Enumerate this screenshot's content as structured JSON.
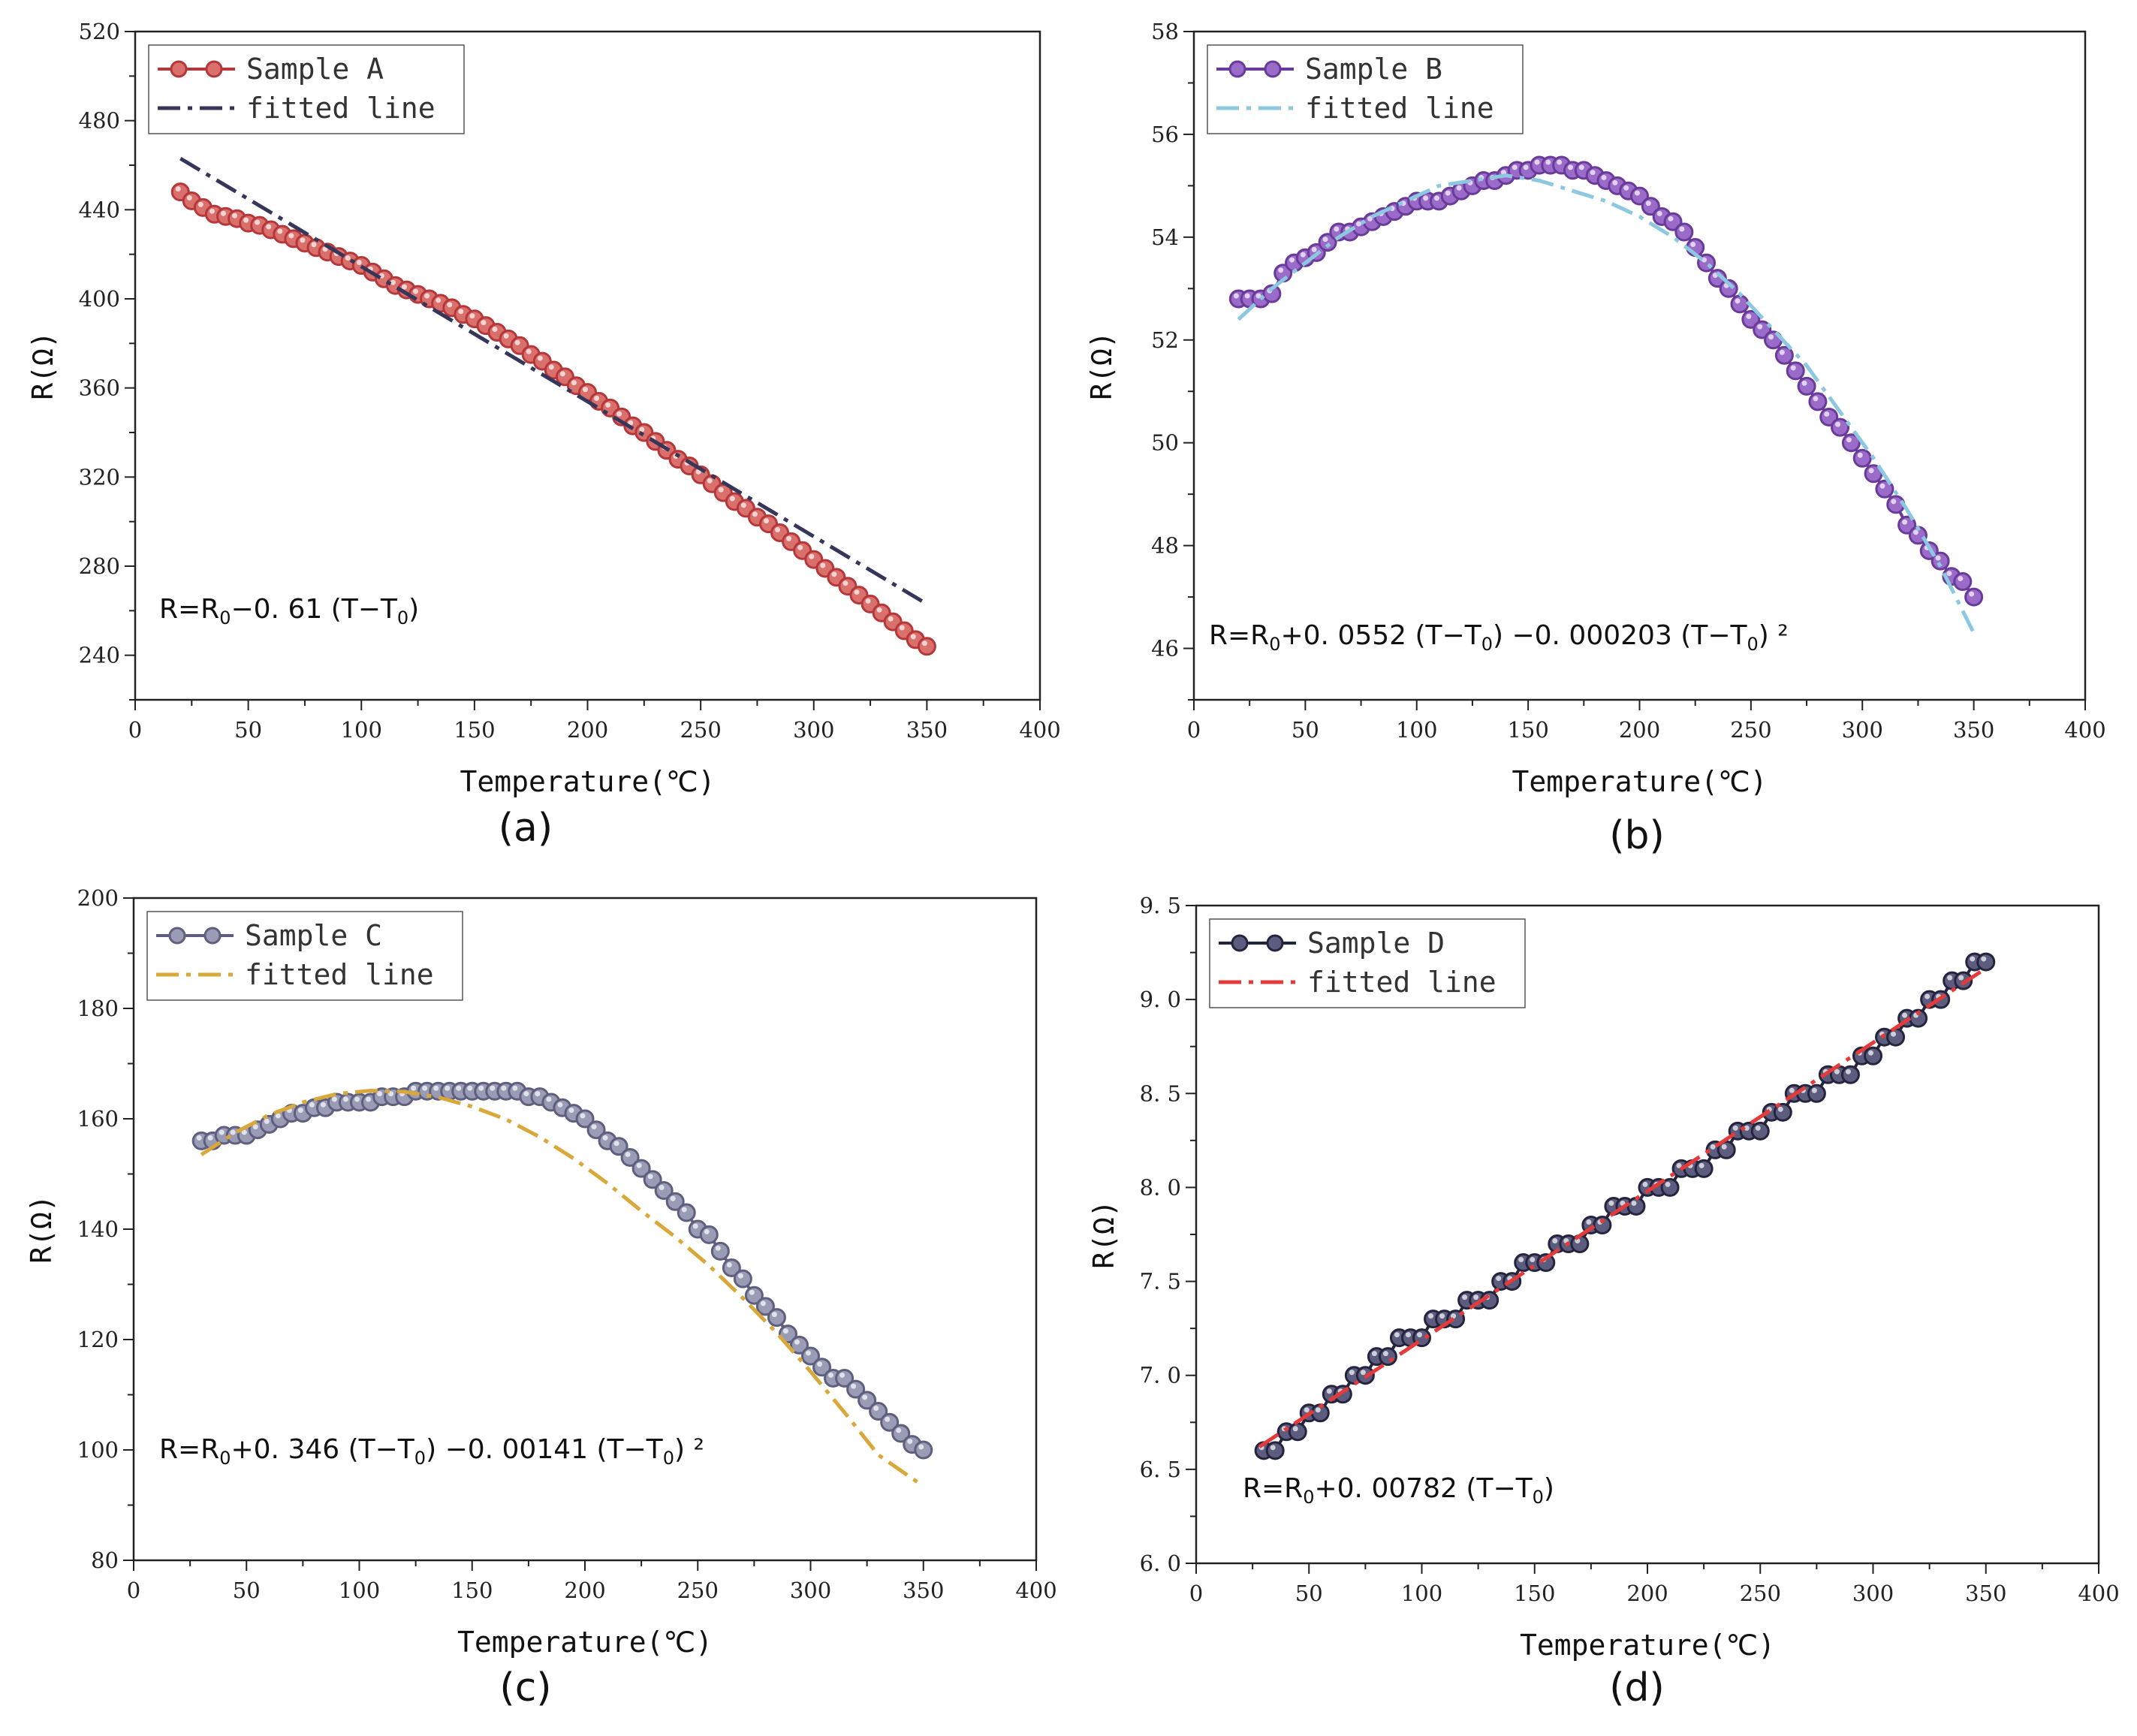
{
  "chart_data": [
    {
      "panel_label": "(a)",
      "type": "line",
      "xlabel": "Temperature(℃)",
      "ylabel": "R(Ω)",
      "xlim": [
        0,
        400
      ],
      "ylim": [
        220,
        520
      ],
      "xticks": [
        "0",
        "50",
        "100",
        "150",
        "200",
        "250",
        "300",
        "350",
        "400"
      ],
      "yticks": [
        "240",
        "280",
        "320",
        "360",
        "400",
        "440",
        "480",
        "520"
      ],
      "legend_position": "top-left",
      "formula": {
        "pre": "R=R",
        "s1": "0",
        "mid": "−0. 61 (T−T",
        "s2": "0",
        "post": ")"
      },
      "series": [
        {
          "name": "Sample A",
          "kind": "markers",
          "color": "#b5373a",
          "fill": "#d9706c",
          "x": [
            20,
            25,
            30,
            35,
            40,
            45,
            50,
            55,
            60,
            65,
            70,
            75,
            80,
            85,
            90,
            95,
            100,
            105,
            110,
            115,
            120,
            125,
            130,
            135,
            140,
            145,
            150,
            155,
            160,
            165,
            170,
            175,
            180,
            185,
            190,
            195,
            200,
            205,
            210,
            215,
            220,
            225,
            230,
            235,
            240,
            245,
            250,
            255,
            260,
            265,
            270,
            275,
            280,
            285,
            290,
            295,
            300,
            305,
            310,
            315,
            320,
            325,
            330,
            335,
            340,
            345,
            350
          ],
          "y": [
            448,
            444,
            441,
            438,
            437,
            436,
            434,
            433,
            431,
            429,
            427,
            425,
            423,
            421,
            419,
            417,
            415,
            412,
            409,
            406,
            404,
            402,
            400,
            398,
            396,
            393,
            391,
            388,
            385,
            382,
            379,
            375,
            372,
            368,
            365,
            361,
            358,
            354,
            351,
            347,
            343,
            340,
            336,
            332,
            328,
            325,
            321,
            317,
            313,
            309,
            306,
            302,
            299,
            295,
            291,
            287,
            283,
            279,
            275,
            271,
            267,
            263,
            259,
            255,
            251,
            247,
            244
          ]
        },
        {
          "name": "fitted line",
          "kind": "dashdot",
          "color": "#35365a",
          "x": [
            20,
            350
          ],
          "y": [
            463,
            263
          ]
        }
      ]
    },
    {
      "panel_label": "(b)",
      "type": "line",
      "xlabel": "Temperature(℃)",
      "ylabel": "R(Ω)",
      "xlim": [
        0,
        400
      ],
      "ylim": [
        45,
        58
      ],
      "xticks": [
        "0",
        "50",
        "100",
        "150",
        "200",
        "250",
        "300",
        "350",
        "400"
      ],
      "yticks": [
        "46",
        "48",
        "50",
        "52",
        "54",
        "56",
        "58"
      ],
      "legend_position": "top-left",
      "formula": {
        "pre": "R=R",
        "s1": "0",
        "mid": "+0. 0552 (T−T",
        "s2": "0",
        "mid2": ") −0. 000203 (T−T",
        "s3": "0",
        "post": ") ²"
      },
      "series": [
        {
          "name": "Sample B",
          "kind": "markers",
          "color": "#6a3a9a",
          "fill": "#9a6bc8",
          "x": [
            20,
            25,
            30,
            35,
            40,
            45,
            50,
            55,
            60,
            65,
            70,
            75,
            80,
            85,
            90,
            95,
            100,
            105,
            110,
            115,
            120,
            125,
            130,
            135,
            140,
            145,
            150,
            155,
            160,
            165,
            170,
            175,
            180,
            185,
            190,
            195,
            200,
            205,
            210,
            215,
            220,
            225,
            230,
            235,
            240,
            245,
            250,
            255,
            260,
            265,
            270,
            275,
            280,
            285,
            290,
            295,
            300,
            305,
            310,
            315,
            320,
            325,
            330,
            335,
            340,
            345,
            350
          ],
          "y": [
            52.8,
            52.8,
            52.8,
            52.9,
            53.3,
            53.5,
            53.6,
            53.7,
            53.9,
            54.1,
            54.1,
            54.2,
            54.3,
            54.4,
            54.5,
            54.6,
            54.7,
            54.7,
            54.7,
            54.8,
            54.9,
            55.0,
            55.1,
            55.1,
            55.2,
            55.3,
            55.3,
            55.4,
            55.4,
            55.4,
            55.3,
            55.3,
            55.2,
            55.1,
            55.0,
            54.9,
            54.8,
            54.6,
            54.4,
            54.3,
            54.1,
            53.8,
            53.5,
            53.2,
            53.0,
            52.7,
            52.4,
            52.2,
            52.0,
            51.7,
            51.4,
            51.1,
            50.8,
            50.5,
            50.3,
            50.0,
            49.7,
            49.4,
            49.1,
            48.8,
            48.4,
            48.2,
            47.9,
            47.7,
            47.4,
            47.3,
            47.0
          ]
        },
        {
          "name": "fitted line",
          "kind": "dashdot",
          "color": "#8cc8e0",
          "x": [
            20,
            35,
            50,
            65,
            80,
            95,
            110,
            125,
            140,
            155,
            170,
            185,
            200,
            215,
            230,
            245,
            260,
            275,
            290,
            305,
            320,
            335,
            350
          ],
          "y": [
            52.4,
            53.0,
            53.5,
            54.0,
            54.4,
            54.7,
            55.0,
            55.1,
            55.2,
            55.1,
            54.9,
            54.7,
            54.4,
            54.0,
            53.5,
            52.9,
            52.2,
            51.5,
            50.6,
            49.7,
            48.7,
            47.6,
            46.3
          ]
        }
      ]
    },
    {
      "panel_label": "(c)",
      "type": "line",
      "xlabel": "Temperature(℃)",
      "ylabel": "R(Ω)",
      "xlim": [
        0,
        400
      ],
      "ylim": [
        80,
        200
      ],
      "xticks": [
        "0",
        "50",
        "100",
        "150",
        "200",
        "250",
        "300",
        "350",
        "400"
      ],
      "yticks": [
        "80",
        "100",
        "120",
        "140",
        "160",
        "180",
        "200"
      ],
      "legend_position": "top-left",
      "formula": {
        "pre": "R=R",
        "s1": "0",
        "mid": "+0. 346 (T−T",
        "s2": "0",
        "mid2": ") −0. 00141 (T−T",
        "s3": "0",
        "post": ") ²"
      },
      "series": [
        {
          "name": "Sample C",
          "kind": "markers",
          "color": "#5e5f7e",
          "fill": "#9a9bb4",
          "x": [
            30,
            35,
            40,
            45,
            50,
            55,
            60,
            65,
            70,
            75,
            80,
            85,
            90,
            95,
            100,
            105,
            110,
            115,
            120,
            125,
            130,
            135,
            140,
            145,
            150,
            155,
            160,
            165,
            170,
            175,
            180,
            185,
            190,
            195,
            200,
            205,
            210,
            215,
            220,
            225,
            230,
            235,
            240,
            245,
            250,
            255,
            260,
            265,
            270,
            275,
            280,
            285,
            290,
            295,
            300,
            305,
            310,
            315,
            320,
            325,
            330,
            335,
            340,
            345,
            350
          ],
          "y": [
            156,
            156,
            157,
            157,
            157,
            158,
            159,
            160,
            161,
            161,
            162,
            162,
            163,
            163,
            163,
            163,
            164,
            164,
            164,
            165,
            165,
            165,
            165,
            165,
            165,
            165,
            165,
            165,
            165,
            164,
            164,
            163,
            162,
            161,
            160,
            158,
            156,
            155,
            153,
            151,
            149,
            147,
            145,
            143,
            140,
            139,
            136,
            133,
            131,
            128,
            126,
            124,
            121,
            119,
            117,
            115,
            113,
            113,
            111,
            109,
            107,
            105,
            103,
            101,
            100
          ]
        },
        {
          "name": "fitted line",
          "kind": "dashdot",
          "color": "#d8a83a",
          "x": [
            30,
            45,
            60,
            75,
            90,
            105,
            120,
            135,
            150,
            165,
            180,
            195,
            210,
            225,
            240,
            255,
            270,
            285,
            300,
            315,
            330,
            348
          ],
          "y": [
            153.5,
            157.5,
            160.7,
            163.0,
            164.5,
            165.1,
            164.9,
            163.9,
            162.2,
            159.9,
            156.7,
            152.8,
            148.3,
            143.3,
            138.6,
            133.4,
            127.5,
            121.2,
            114.2,
            106.8,
            99.1,
            94.0
          ]
        }
      ]
    },
    {
      "panel_label": "(d)",
      "type": "line",
      "xlabel": "Temperature(℃)",
      "ylabel": "R(Ω)",
      "xlim": [
        0,
        400
      ],
      "ylim": [
        6.0,
        9.5
      ],
      "xticks": [
        "0",
        "50",
        "100",
        "150",
        "200",
        "250",
        "300",
        "350",
        "400"
      ],
      "yticks": [
        "6. 0",
        "6. 5",
        "7. 0",
        "7. 5",
        "8. 0",
        "8. 5",
        "9. 0",
        "9. 5"
      ],
      "legend_position": "top-left",
      "formula": {
        "pre": "R=R",
        "s1": "0",
        "mid": "+0. 00782 (T−T",
        "s2": "0",
        "post": ")"
      },
      "series": [
        {
          "name": "Sample D",
          "kind": "markers",
          "color": "#24243e",
          "fill": "#5c5c7e",
          "x": [
            30,
            35,
            40,
            45,
            50,
            55,
            60,
            65,
            70,
            75,
            80,
            85,
            90,
            95,
            100,
            105,
            110,
            115,
            120,
            125,
            130,
            135,
            140,
            145,
            150,
            155,
            160,
            165,
            170,
            175,
            180,
            185,
            190,
            195,
            200,
            205,
            210,
            215,
            220,
            225,
            230,
            235,
            240,
            245,
            250,
            255,
            260,
            265,
            270,
            275,
            280,
            285,
            290,
            295,
            300,
            305,
            310,
            315,
            320,
            325,
            330,
            335,
            340,
            345,
            350
          ],
          "y": [
            6.6,
            6.6,
            6.7,
            6.7,
            6.8,
            6.8,
            6.9,
            6.9,
            7.0,
            7.0,
            7.1,
            7.1,
            7.2,
            7.2,
            7.2,
            7.3,
            7.3,
            7.3,
            7.4,
            7.4,
            7.4,
            7.5,
            7.5,
            7.6,
            7.6,
            7.6,
            7.7,
            7.7,
            7.7,
            7.8,
            7.8,
            7.9,
            7.9,
            7.9,
            8.0,
            8.0,
            8.0,
            8.1,
            8.1,
            8.1,
            8.2,
            8.2,
            8.3,
            8.3,
            8.3,
            8.4,
            8.4,
            8.5,
            8.5,
            8.5,
            8.6,
            8.6,
            8.6,
            8.7,
            8.7,
            8.8,
            8.8,
            8.9,
            8.9,
            9.0,
            9.0,
            9.1,
            9.1,
            9.2,
            9.2
          ]
        },
        {
          "name": "fitted line",
          "kind": "dashdot",
          "color": "#e53a3a",
          "x": [
            28,
            348
          ],
          "y": [
            6.62,
            9.15
          ]
        }
      ]
    }
  ]
}
